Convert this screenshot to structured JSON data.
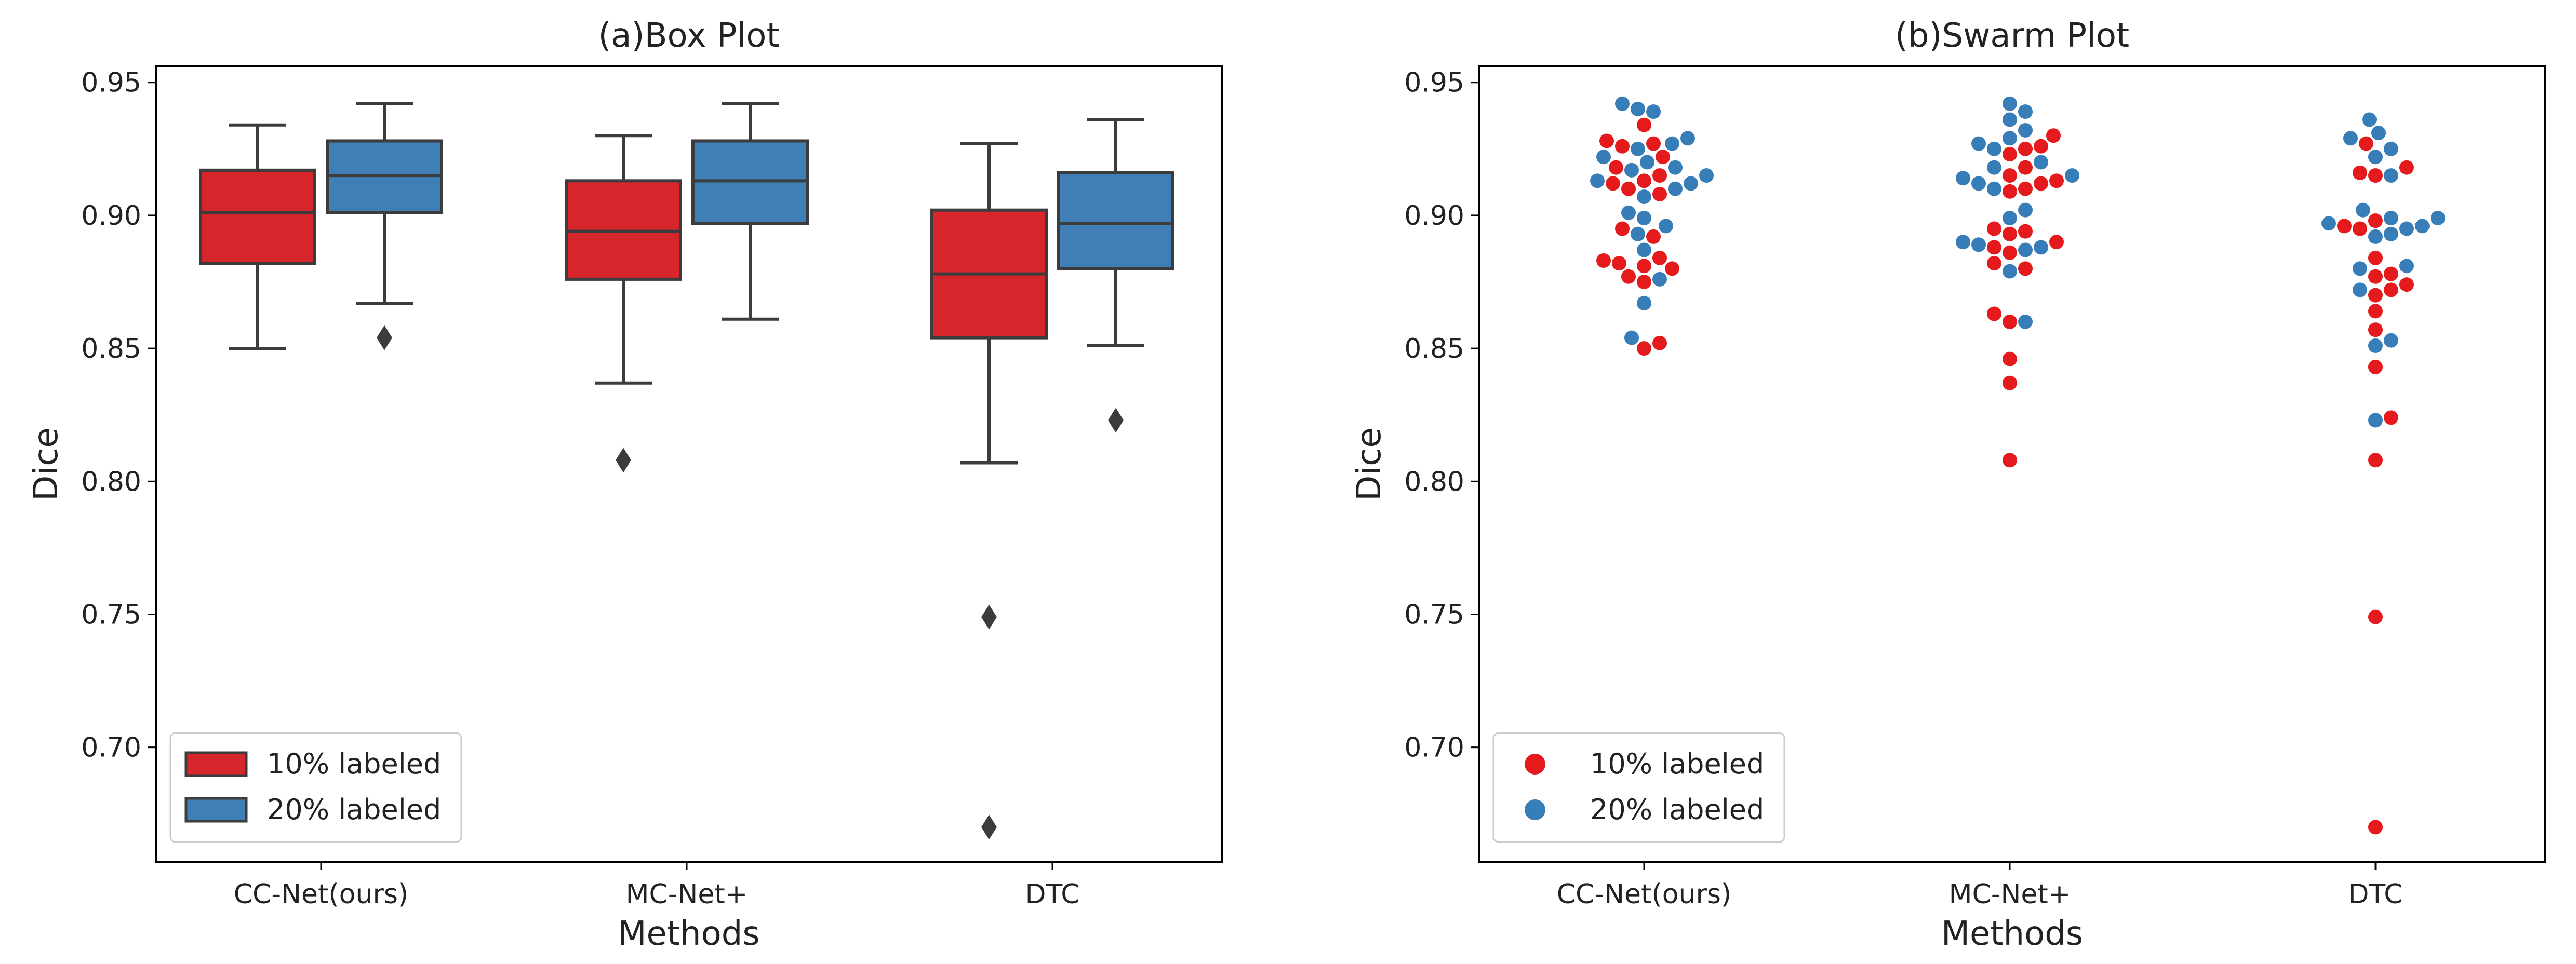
{
  "chart_data": [
    {
      "type": "box",
      "title": "(a)Box Plot",
      "xlabel": "Methods",
      "ylabel": "Dice",
      "categories": [
        "CC-Net(ours)",
        "MC-Net+",
        "DTC"
      ],
      "ylim": [
        0.657,
        0.956
      ],
      "yticks": [
        0.7,
        0.75,
        0.8,
        0.85,
        0.9,
        0.95
      ],
      "legend": {
        "position": "lower-left"
      },
      "series": [
        {
          "name": "10% labeled",
          "color": "#D7262B",
          "boxes": [
            {
              "whisker_low": 0.85,
              "q1": 0.882,
              "median": 0.901,
              "q3": 0.917,
              "whisker_high": 0.934,
              "outliers": []
            },
            {
              "whisker_low": 0.837,
              "q1": 0.876,
              "median": 0.894,
              "q3": 0.913,
              "whisker_high": 0.93,
              "outliers": [
                0.808
              ]
            },
            {
              "whisker_low": 0.807,
              "q1": 0.854,
              "median": 0.878,
              "q3": 0.902,
              "whisker_high": 0.927,
              "outliers": [
                0.749,
                0.67
              ]
            }
          ]
        },
        {
          "name": "20% labeled",
          "color": "#3F7FB6",
          "boxes": [
            {
              "whisker_low": 0.867,
              "q1": 0.901,
              "median": 0.915,
              "q3": 0.928,
              "whisker_high": 0.942,
              "outliers": [
                0.854
              ]
            },
            {
              "whisker_low": 0.861,
              "q1": 0.897,
              "median": 0.913,
              "q3": 0.928,
              "whisker_high": 0.942,
              "outliers": []
            },
            {
              "whisker_low": 0.851,
              "q1": 0.88,
              "median": 0.897,
              "q3": 0.916,
              "whisker_high": 0.936,
              "outliers": [
                0.823
              ]
            }
          ]
        }
      ]
    },
    {
      "type": "swarm",
      "title": "(b)Swarm Plot",
      "xlabel": "Methods",
      "ylabel": "Dice",
      "categories": [
        "CC-Net(ours)",
        "MC-Net+",
        "DTC"
      ],
      "ylim": [
        0.657,
        0.956
      ],
      "yticks": [
        0.7,
        0.75,
        0.8,
        0.85,
        0.9,
        0.95
      ],
      "legend": {
        "position": "lower-left"
      },
      "series": [
        {
          "name": "10% labeled",
          "color": "#E41A1C",
          "values": [
            [
              0.934,
              0.928,
              0.927,
              0.926,
              0.922,
              0.918,
              0.915,
              0.913,
              0.912,
              0.91,
              0.908,
              0.895,
              0.892,
              0.884,
              0.883,
              0.882,
              0.881,
              0.88,
              0.877,
              0.875,
              0.852,
              0.85
            ],
            [
              0.93,
              0.926,
              0.925,
              0.923,
              0.918,
              0.915,
              0.913,
              0.912,
              0.91,
              0.909,
              0.895,
              0.894,
              0.893,
              0.89,
              0.888,
              0.886,
              0.882,
              0.88,
              0.863,
              0.86,
              0.846,
              0.837,
              0.808
            ],
            [
              0.927,
              0.918,
              0.916,
              0.915,
              0.898,
              0.896,
              0.895,
              0.884,
              0.878,
              0.877,
              0.874,
              0.872,
              0.87,
              0.864,
              0.857,
              0.843,
              0.824,
              0.808,
              0.749,
              0.67
            ]
          ]
        },
        {
          "name": "20% labeled",
          "color": "#377EB8",
          "values": [
            [
              0.942,
              0.94,
              0.939,
              0.929,
              0.927,
              0.925,
              0.922,
              0.92,
              0.918,
              0.917,
              0.915,
              0.913,
              0.912,
              0.91,
              0.907,
              0.901,
              0.899,
              0.896,
              0.893,
              0.887,
              0.876,
              0.867,
              0.854
            ],
            [
              0.942,
              0.939,
              0.936,
              0.932,
              0.929,
              0.927,
              0.925,
              0.92,
              0.918,
              0.915,
              0.914,
              0.912,
              0.91,
              0.902,
              0.899,
              0.89,
              0.889,
              0.888,
              0.887,
              0.879,
              0.86
            ],
            [
              0.936,
              0.931,
              0.929,
              0.925,
              0.922,
              0.915,
              0.902,
              0.899,
              0.899,
              0.897,
              0.896,
              0.895,
              0.893,
              0.892,
              0.881,
              0.88,
              0.872,
              0.853,
              0.851,
              0.823
            ]
          ]
        }
      ]
    }
  ]
}
